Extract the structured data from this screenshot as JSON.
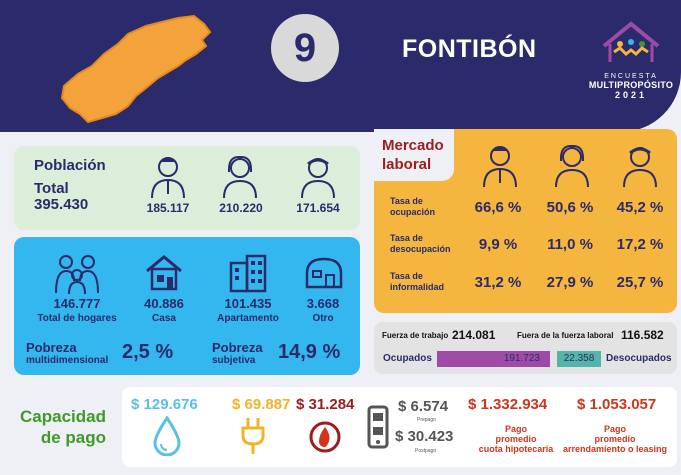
{
  "header": {
    "number": "9",
    "title": "FONTIBÓN",
    "logo": {
      "line1": "ENCUESTA",
      "line2": "MULTIPROPÓSITO",
      "line3": "2021"
    }
  },
  "poblacion": {
    "label": "Población",
    "total_label": "Total",
    "total_value": "395.430",
    "men": "185.117",
    "women": "210.220",
    "other": "171.654"
  },
  "hogares": {
    "total_value": "146.777",
    "total_label": "Total de hogares",
    "casa_value": "40.886",
    "casa_label": "Casa",
    "apto_value": "101.435",
    "apto_label": "Apartamento",
    "otro_value": "3.668",
    "otro_label": "Otro",
    "pobreza_multi_title": "Pobreza",
    "pobreza_multi_sub": "multidimensional",
    "pobreza_multi_value": "2,5 %",
    "pobreza_subj_title": "Pobreza",
    "pobreza_subj_sub": "subjetiva",
    "pobreza_subj_value": "14,9 %"
  },
  "mercado": {
    "title_1": "Mercado",
    "title_2": "laboral",
    "rows": [
      {
        "label_1": "Tasa de",
        "label_2": "ocupación",
        "values": [
          "66,6 %",
          "50,6 %",
          "45,2 %"
        ]
      },
      {
        "label_1": "Tasa de",
        "label_2": "desocupación",
        "values": [
          "9,9 %",
          "11,0 %",
          "17,2 %"
        ]
      },
      {
        "label_1": "Tasa de",
        "label_2": "informalidad",
        "values": [
          "31,2 %",
          "27,9 %",
          "25,7 %"
        ]
      }
    ]
  },
  "fuerza": {
    "trabajo_label": "Fuerza de trabajo",
    "trabajo_value": "214.081",
    "fuera_label": "Fuera de la fuerza laboral",
    "fuera_value": "116.582",
    "ocupados_label": "Ocupados",
    "ocupados_value": "191.723",
    "desocupados_label": "Desocupados",
    "desocupados_value": "22.358"
  },
  "capacidad": {
    "title_1": "Capacidad",
    "title_2": "de pago",
    "agua": "$ 129.676",
    "energia": "$ 69.887",
    "gas": "$ 31.284",
    "prepago_value": "$ 6.574",
    "prepago_label": "Prepago",
    "postpago_value": "$ 30.423",
    "postpago_label": "Postpago",
    "hipoteca_value": "$ 1.332.934",
    "hipoteca_l1": "Pago",
    "hipoteca_l2": "promedio",
    "hipoteca_l3": "cuota hipotecaria",
    "arriendo_value": "$ 1.053.057",
    "arriendo_l1": "Pago",
    "arriendo_l2": "promedio",
    "arriendo_l3": "arrendamiento o leasing"
  },
  "colors": {
    "navy": "#2b2a6b",
    "orange": "#f4b63f",
    "blue": "#33b7ee",
    "green": "#3f9a2a",
    "red": "#d0341d",
    "water": "#5bbfe8",
    "electric": "#f0b429",
    "gas": "#9b1d1f"
  }
}
